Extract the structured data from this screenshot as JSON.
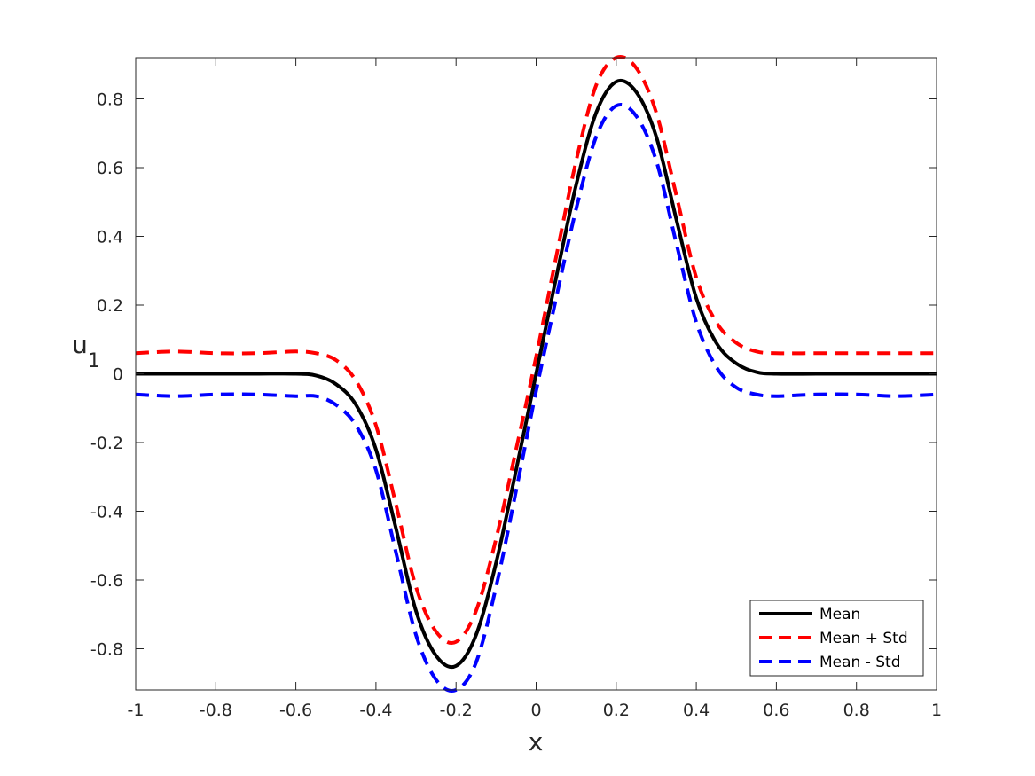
{
  "chart_data": {
    "type": "line",
    "title": "",
    "xlabel": "x",
    "ylabel": {
      "main": "u",
      "subscript": "1"
    },
    "xlim": [
      -1,
      1
    ],
    "ylim": [
      -0.92,
      0.92
    ],
    "xticks": [
      -1,
      -0.8,
      -0.6,
      -0.4,
      -0.2,
      0,
      0.2,
      0.4,
      0.6,
      0.8,
      1
    ],
    "yticks": [
      -0.8,
      -0.6,
      -0.4,
      -0.2,
      0,
      0.2,
      0.4,
      0.6,
      0.8
    ],
    "grid": false,
    "box": true,
    "legend_position": "bottom-right",
    "series": [
      {
        "name": "Mean",
        "color": "#000000",
        "style": "solid",
        "x": [
          -1,
          -0.9,
          -0.8,
          -0.7,
          -0.6,
          -0.55,
          -0.5,
          -0.45,
          -0.4,
          -0.35,
          -0.3,
          -0.25,
          -0.2,
          -0.15,
          -0.1,
          -0.05,
          0,
          0.05,
          0.1,
          0.15,
          0.2,
          0.25,
          0.3,
          0.35,
          0.4,
          0.45,
          0.5,
          0.55,
          0.6,
          0.7,
          0.8,
          0.9,
          1
        ],
        "y": [
          0,
          0,
          0,
          0,
          0,
          -0.005,
          -0.03,
          -0.09,
          -0.22,
          -0.45,
          -0.69,
          -0.82,
          -0.85,
          -0.76,
          -0.55,
          -0.28,
          0,
          0.28,
          0.55,
          0.76,
          0.85,
          0.82,
          0.69,
          0.45,
          0.22,
          0.09,
          0.03,
          0.005,
          0,
          0,
          0,
          0,
          0
        ]
      },
      {
        "name": "Mean + Std",
        "color": "#ff0000",
        "style": "dashed",
        "x": [
          -1,
          -0.9,
          -0.8,
          -0.7,
          -0.6,
          -0.55,
          -0.5,
          -0.45,
          -0.4,
          -0.35,
          -0.3,
          -0.25,
          -0.2,
          -0.15,
          -0.1,
          -0.05,
          0,
          0.05,
          0.1,
          0.15,
          0.2,
          0.25,
          0.3,
          0.35,
          0.4,
          0.45,
          0.5,
          0.55,
          0.6,
          0.7,
          0.8,
          0.9,
          1
        ],
        "y": [
          0.06,
          0.065,
          0.06,
          0.06,
          0.065,
          0.06,
          0.04,
          -0.02,
          -0.15,
          -0.38,
          -0.62,
          -0.75,
          -0.78,
          -0.69,
          -0.48,
          -0.22,
          0.05,
          0.34,
          0.62,
          0.84,
          0.92,
          0.89,
          0.76,
          0.52,
          0.28,
          0.15,
          0.09,
          0.065,
          0.06,
          0.06,
          0.06,
          0.06,
          0.06
        ]
      },
      {
        "name": "Mean - Std",
        "color": "#0000ff",
        "style": "dashed",
        "x": [
          -1,
          -0.9,
          -0.8,
          -0.7,
          -0.6,
          -0.55,
          -0.5,
          -0.45,
          -0.4,
          -0.35,
          -0.3,
          -0.25,
          -0.2,
          -0.15,
          -0.1,
          -0.05,
          0,
          0.05,
          0.1,
          0.15,
          0.2,
          0.25,
          0.3,
          0.35,
          0.4,
          0.45,
          0.5,
          0.55,
          0.6,
          0.7,
          0.8,
          0.9,
          1
        ],
        "y": [
          -0.06,
          -0.065,
          -0.06,
          -0.06,
          -0.065,
          -0.065,
          -0.09,
          -0.15,
          -0.28,
          -0.52,
          -0.76,
          -0.89,
          -0.92,
          -0.84,
          -0.62,
          -0.34,
          -0.05,
          0.22,
          0.48,
          0.69,
          0.78,
          0.75,
          0.62,
          0.38,
          0.15,
          0.02,
          -0.04,
          -0.06,
          -0.065,
          -0.06,
          -0.06,
          -0.065,
          -0.06
        ]
      }
    ]
  }
}
